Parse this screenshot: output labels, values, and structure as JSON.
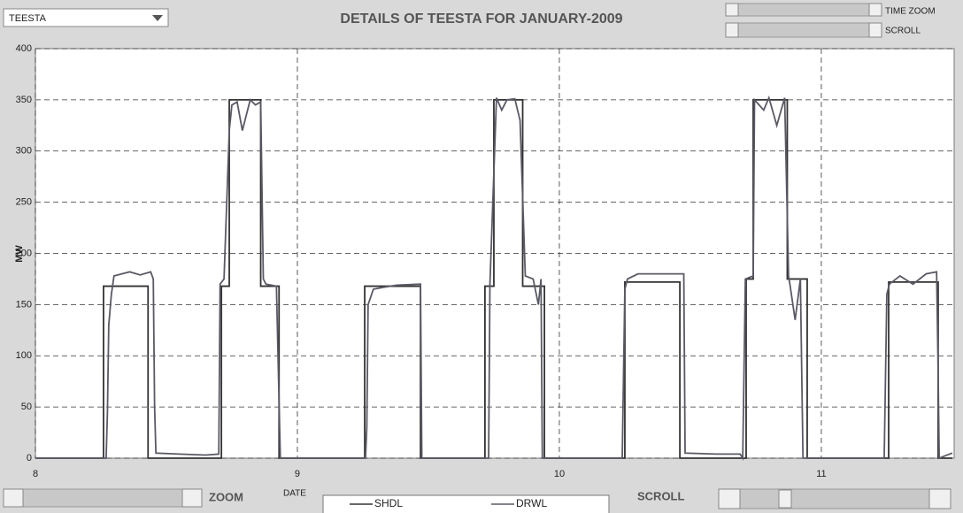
{
  "dropdown": {
    "selected": "TEESTA"
  },
  "controls": {
    "time_zoom": "TIME ZOOM",
    "scroll_top": "SCROLL",
    "zoom": "ZOOM",
    "scroll_bottom": "SCROLL"
  },
  "chart_data": {
    "type": "line",
    "title": "DETAILS OF TEESTA FOR JANUARY-2009",
    "x_label": "DATE",
    "y_label": "MW",
    "xlim": [
      8,
      11.507
    ],
    "ylim": [
      0,
      400
    ],
    "xticks": [
      8,
      9,
      10,
      11
    ],
    "yticks": [
      0,
      50,
      100,
      150,
      200,
      250,
      300,
      350,
      400
    ],
    "grid": true,
    "series": [
      {
        "name": "SHDL",
        "color": "#333333",
        "x": [
          8,
          8.26,
          8.26,
          8.43,
          8.43,
          8.71,
          8.71,
          8.74,
          8.74,
          8.86,
          8.86,
          8.93,
          8.93,
          9.257,
          9.257,
          9.47,
          9.47,
          9.716,
          9.716,
          9.75,
          9.75,
          9.86,
          9.86,
          9.943,
          9.943,
          10.25,
          10.25,
          10.46,
          10.46,
          10.713,
          10.713,
          10.74,
          10.74,
          10.87,
          10.87,
          10.946,
          10.946,
          11.257,
          11.257,
          11.446,
          11.446,
          11.5
        ],
        "values": [
          0,
          0,
          168,
          168,
          0,
          0,
          168,
          168,
          350,
          350,
          168,
          168,
          0,
          0,
          168,
          168,
          0,
          0,
          168,
          168,
          350,
          350,
          168,
          168,
          0,
          0,
          172,
          172,
          0,
          0,
          175,
          175,
          350,
          350,
          175,
          175,
          0,
          0,
          172,
          172,
          0,
          0
        ]
      },
      {
        "name": "DRWL",
        "color": "#5a5a66",
        "x": [
          8,
          8.27,
          8.275,
          8.28,
          8.29,
          8.3,
          8.33,
          8.36,
          8.4,
          8.44,
          8.45,
          8.455,
          8.46,
          8.55,
          8.65,
          8.7,
          8.705,
          8.72,
          8.74,
          8.75,
          8.77,
          8.79,
          8.82,
          8.84,
          8.86,
          8.87,
          8.88,
          8.92,
          8.935,
          9.26,
          9.265,
          9.27,
          9.29,
          9.33,
          9.38,
          9.47,
          9.475,
          9.73,
          9.735,
          9.76,
          9.78,
          9.8,
          9.83,
          9.85,
          9.87,
          9.9,
          9.92,
          9.93,
          9.935,
          10.24,
          10.25,
          10.26,
          10.3,
          10.4,
          10.475,
          10.48,
          10.6,
          10.69,
          10.7,
          10.71,
          10.74,
          10.745,
          10.78,
          10.8,
          10.83,
          10.86,
          10.875,
          10.88,
          10.9,
          10.92,
          10.93,
          11.24,
          11.25,
          11.26,
          11.3,
          11.35,
          11.4,
          11.44,
          11.445,
          11.45,
          11.5
        ],
        "values": [
          0,
          0,
          45,
          130,
          160,
          178,
          180,
          182,
          179,
          182,
          175,
          50,
          5,
          4,
          3,
          4,
          170,
          175,
          320,
          345,
          348,
          320,
          350,
          345,
          348,
          175,
          170,
          168,
          0,
          0,
          30,
          150,
          165,
          167,
          169,
          170,
          0,
          0,
          170,
          352,
          340,
          350,
          351,
          330,
          178,
          175,
          150,
          175,
          0,
          0,
          165,
          175,
          180,
          180,
          180,
          5,
          4,
          4,
          0,
          175,
          178,
          350,
          340,
          352,
          325,
          352,
          178,
          170,
          135,
          175,
          0,
          0,
          160,
          170,
          178,
          170,
          180,
          182,
          100,
          0,
          5
        ]
      }
    ]
  }
}
